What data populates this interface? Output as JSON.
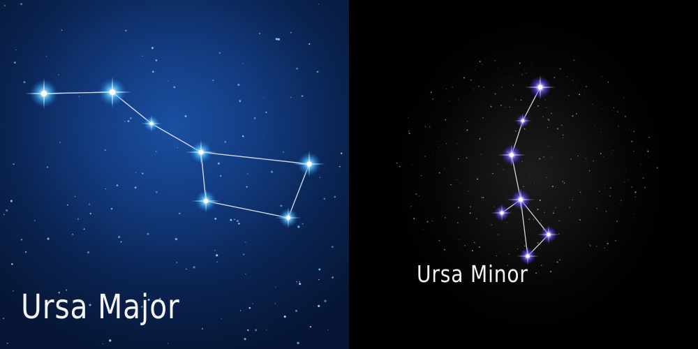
{
  "left_panel": {
    "title": "Ursa Major",
    "colors": {
      "star_glow": "#4fc3ff",
      "line": "#e6ecf5"
    }
  },
  "right_panel": {
    "title": "Ursa Minor",
    "colors": {
      "star_glow": "#6a5cff",
      "line": "#e6ecf5"
    }
  }
}
